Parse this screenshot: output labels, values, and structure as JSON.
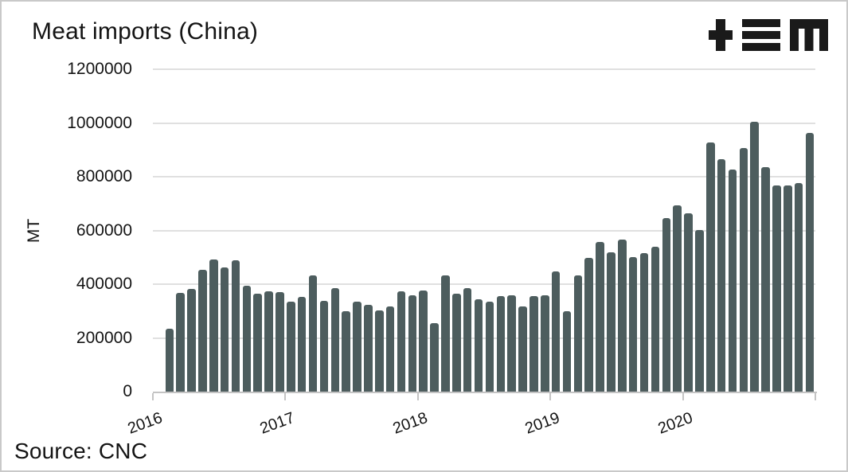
{
  "window": {
    "background": "#ffffff",
    "border_color": "#c9c9c9"
  },
  "header": {
    "title": "Meat imports (China)",
    "logo": {
      "name": "plus-equals-m-logo",
      "color": "#1a1a1a"
    }
  },
  "footer": {
    "source_label": "Source: CNC"
  },
  "chart_data": {
    "type": "bar",
    "title": "Meat imports (China)",
    "xlabel": "",
    "ylabel": "MT",
    "unit": "MT",
    "ylim": [
      0,
      1200000
    ],
    "yticks": [
      0,
      200000,
      400000,
      600000,
      800000,
      1000000,
      1200000
    ],
    "xticks": [
      "2016",
      "2017",
      "2018",
      "2019",
      "2020"
    ],
    "grid": true,
    "legend": false,
    "bar_color": "#4d5d5e",
    "gridline_color": "#e0e0e0",
    "axis_color": "#c4c4c4",
    "text_color": "#141414",
    "months": [
      "2016-02",
      "2016-03",
      "2016-04",
      "2016-05",
      "2016-06",
      "2016-07",
      "2016-08",
      "2016-09",
      "2016-10",
      "2016-11",
      "2016-12",
      "2017-01",
      "2017-02",
      "2017-03",
      "2017-04",
      "2017-05",
      "2017-06",
      "2017-07",
      "2017-08",
      "2017-09",
      "2017-10",
      "2017-11",
      "2017-12",
      "2018-01",
      "2018-02",
      "2018-03",
      "2018-04",
      "2018-05",
      "2018-06",
      "2018-07",
      "2018-08",
      "2018-09",
      "2018-10",
      "2018-11",
      "2018-12",
      "2019-01",
      "2019-02",
      "2019-03",
      "2019-04",
      "2019-05",
      "2019-06",
      "2019-07",
      "2019-08",
      "2019-09",
      "2019-10",
      "2019-11",
      "2019-12",
      "2020-01",
      "2020-02",
      "2020-03",
      "2020-04",
      "2020-05",
      "2020-06",
      "2020-07",
      "2020-08",
      "2020-09",
      "2020-10",
      "2020-11",
      "2020-12"
    ],
    "values": [
      233000,
      366000,
      381000,
      452000,
      492000,
      461000,
      488000,
      393000,
      364000,
      373000,
      370000,
      336000,
      352000,
      432000,
      338000,
      385000,
      300000,
      336000,
      322000,
      302000,
      318000,
      374000,
      359000,
      377000,
      254000,
      432000,
      363000,
      384000,
      345000,
      336000,
      356000,
      359000,
      318000,
      356000,
      359000,
      446000,
      299000,
      434000,
      499000,
      558000,
      520000,
      565000,
      501000,
      516000,
      538000,
      647000,
      694000,
      664000,
      601000,
      926000,
      864000,
      827000,
      908000,
      1005000,
      836000,
      766000,
      766000,
      776000,
      962000
    ]
  }
}
